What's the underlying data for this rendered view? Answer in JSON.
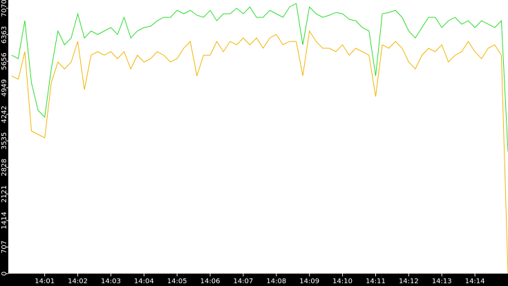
{
  "chart_data": {
    "type": "line",
    "x": [
      0,
      0.2,
      0.4,
      0.6,
      0.8,
      1,
      1.2,
      1.4,
      1.6,
      1.8,
      2,
      2.2,
      2.4,
      2.6,
      2.8,
      3,
      3.2,
      3.4,
      3.6,
      3.8,
      4,
      4.2,
      4.4,
      4.6,
      4.8,
      5,
      5.2,
      5.4,
      5.6,
      5.8,
      6,
      6.2,
      6.4,
      6.6,
      6.8,
      7,
      7.2,
      7.4,
      7.6,
      7.8,
      8,
      8.2,
      8.4,
      8.6,
      8.8,
      9,
      9.2,
      9.4,
      9.6,
      9.8,
      10,
      10.2,
      10.4,
      10.6,
      10.8,
      11,
      11.2,
      11.4,
      11.6,
      11.8,
      12,
      12.2,
      12.4,
      12.6,
      12.8,
      13,
      13.2,
      13.4,
      13.6,
      13.8,
      14,
      14.2,
      14.4,
      14.6,
      14.8,
      15
    ],
    "series": [
      {
        "color": "#2bdb2b",
        "values": [
          5820,
          5728,
          6738,
          5086,
          4351,
          4168,
          5453,
          6463,
          6096,
          6279,
          6922,
          6279,
          6463,
          6371,
          6463,
          6555,
          6371,
          6830,
          6279,
          6463,
          6555,
          6591,
          6738,
          6830,
          6830,
          7014,
          6922,
          7014,
          6885,
          6830,
          7014,
          6738,
          6922,
          6922,
          7069,
          6922,
          7105,
          6830,
          6830,
          7014,
          6922,
          6830,
          7105,
          7197,
          6096,
          7105,
          6922,
          6830,
          6885,
          6958,
          6922,
          6775,
          6738,
          6555,
          6463,
          5269,
          6922,
          6958,
          7014,
          6830,
          6463,
          6279,
          6555,
          6830,
          6830,
          6555,
          6738,
          6830,
          6646,
          6738,
          6555,
          6738,
          6646,
          6555,
          6738,
          3250
        ]
      },
      {
        "color": "#f0b400",
        "values": [
          5269,
          5178,
          5912,
          3801,
          3709,
          3617,
          5086,
          5637,
          5453,
          5637,
          6187,
          4902,
          5820,
          5912,
          5820,
          5912,
          5728,
          5912,
          5453,
          5820,
          5637,
          5728,
          5912,
          5820,
          5637,
          5728,
          6004,
          6187,
          5269,
          5820,
          5820,
          6187,
          5912,
          6187,
          6096,
          6279,
          6096,
          6279,
          6004,
          6279,
          6371,
          6096,
          6187,
          6187,
          5269,
          6463,
          6187,
          6004,
          6004,
          5912,
          6096,
          5820,
          6004,
          5912,
          5820,
          4718,
          6096,
          6004,
          6187,
          6004,
          5637,
          5453,
          5820,
          6004,
          5912,
          6096,
          5637,
          5820,
          5912,
          6187,
          5912,
          5728,
          6004,
          6096,
          5820,
          0
        ]
      }
    ],
    "xlim": [
      -0.1,
      15
    ],
    "xticks": [
      {
        "value": 1,
        "label": "14:01"
      },
      {
        "value": 2,
        "label": "14:02"
      },
      {
        "value": 3,
        "label": "14:03"
      },
      {
        "value": 4,
        "label": "14:04"
      },
      {
        "value": 5,
        "label": "14:05"
      },
      {
        "value": 6,
        "label": "14:06"
      },
      {
        "value": 7,
        "label": "14:07"
      },
      {
        "value": 8,
        "label": "14:08"
      },
      {
        "value": 9,
        "label": "14:09"
      },
      {
        "value": 10,
        "label": "14:10"
      },
      {
        "value": 11,
        "label": "14:11"
      },
      {
        "value": 12,
        "label": "14:12"
      },
      {
        "value": 13,
        "label": "14:13"
      },
      {
        "value": 14,
        "label": "14:14"
      }
    ],
    "ylim": [
      0,
      7290
    ],
    "yticks": [
      0,
      707,
      1414,
      2121,
      2828,
      3535,
      4242,
      4949,
      5656,
      6363,
      7070
    ]
  }
}
